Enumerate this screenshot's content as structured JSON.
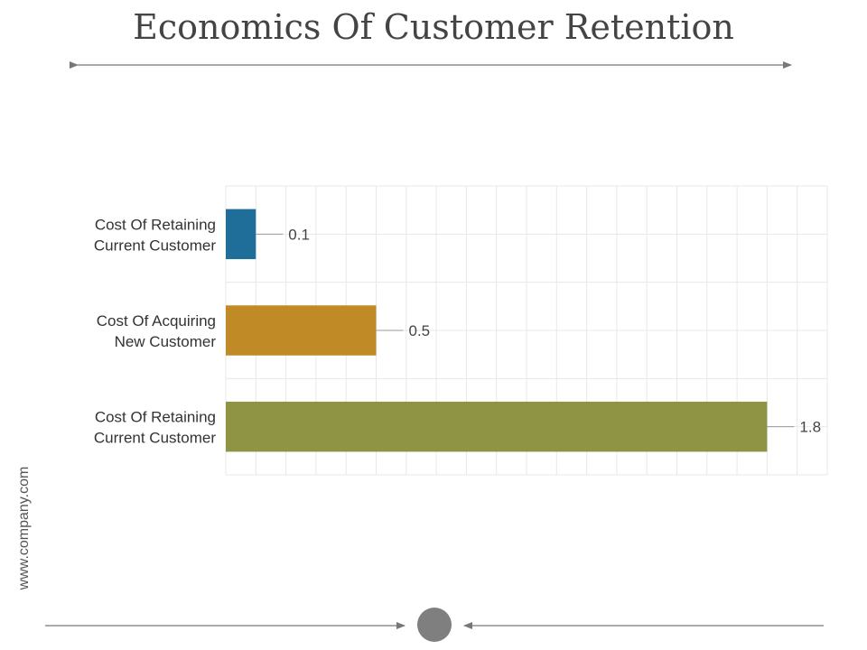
{
  "slide": {
    "title": "Economics Of Customer Retention",
    "website": "www.company.com"
  },
  "chart_data": {
    "type": "bar",
    "orientation": "horizontal",
    "categories": [
      [
        "Cost Of Retaining",
        "Current Customer"
      ],
      [
        "Cost Of Acquiring",
        "New Customer"
      ],
      [
        "Cost Of Retaining",
        "Current Customer"
      ]
    ],
    "values": [
      0.1,
      0.5,
      1.8
    ],
    "data_labels": [
      "0.1",
      "0.5",
      "1.8"
    ],
    "xlim": [
      0,
      2
    ],
    "grid": true,
    "legend": "none",
    "colors": [
      "#1f6e99",
      "#c08a26",
      "#8e9444"
    ]
  },
  "colors": {
    "title": "#444444",
    "arrow": "#777777",
    "grid": "#e8e8e8",
    "circle": "#7f7f7f"
  }
}
